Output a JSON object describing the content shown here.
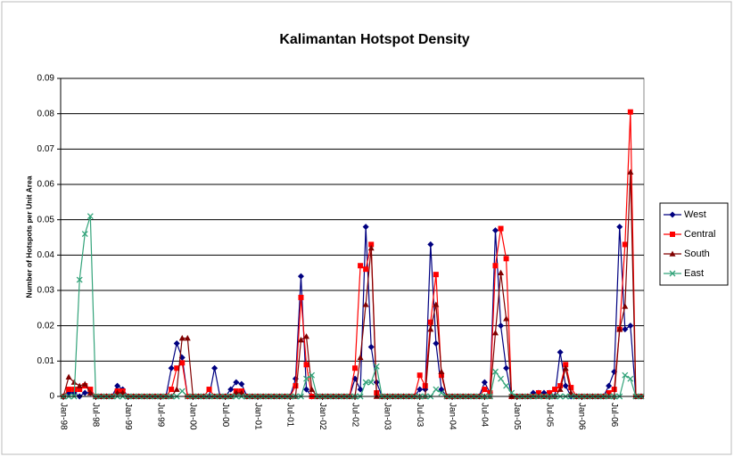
{
  "chart_data": {
    "type": "line",
    "title": "Kalimantan Hotspot Density",
    "y_label": "Number of Hotspots per Unit Area",
    "categories": [
      "Jan-98",
      null,
      null,
      null,
      null,
      null,
      "Jul-98",
      null,
      null,
      null,
      null,
      null,
      "Jan-99",
      null,
      null,
      null,
      null,
      null,
      "Jul-99",
      null,
      null,
      null,
      null,
      null,
      "Jan-00",
      null,
      null,
      null,
      null,
      null,
      "Jul-00",
      null,
      null,
      null,
      null,
      null,
      "Jan-01",
      null,
      null,
      null,
      null,
      null,
      "Jul-01",
      null,
      null,
      null,
      null,
      null,
      "Jan-02",
      null,
      null,
      null,
      null,
      null,
      "Jul-02",
      null,
      null,
      null,
      null,
      null,
      "Jan-03",
      null,
      null,
      null,
      null,
      null,
      "Jul-03",
      null,
      null,
      null,
      null,
      null,
      "Jan-04",
      null,
      null,
      null,
      null,
      null,
      "Jul-04",
      null,
      null,
      null,
      null,
      null,
      "Jan-05",
      null,
      null,
      null,
      null,
      null,
      "Jul-05",
      null,
      null,
      null,
      null,
      null,
      "Jan-06",
      null,
      null,
      null,
      null,
      null,
      "Jul-06",
      null,
      null,
      null,
      null,
      null
    ],
    "series": [
      {
        "name": "West",
        "color": "#000080",
        "marker": "diamond",
        "values": [
          0,
          0.001,
          0.001,
          0,
          0.001,
          0.001,
          0,
          0,
          0,
          0,
          0.003,
          0.002,
          0,
          0,
          0,
          0,
          0,
          0,
          0,
          0,
          0.008,
          0.015,
          0.011,
          0,
          0,
          0,
          0,
          0,
          0.008,
          0,
          0,
          0.002,
          0.004,
          0.0035,
          0,
          0,
          0,
          0,
          0,
          0,
          0,
          0,
          0,
          0.005,
          0.034,
          0.002,
          0,
          0,
          0,
          0,
          0,
          0,
          0,
          0,
          0.005,
          0.002,
          0.048,
          0.014,
          0.004,
          0,
          0,
          0,
          0,
          0,
          0,
          0,
          0.002,
          0.002,
          0.043,
          0.015,
          0.002,
          0,
          0,
          0,
          0,
          0,
          0,
          0,
          0.004,
          0.001,
          0.047,
          0.02,
          0.008,
          0,
          0,
          0,
          0,
          0.001,
          0.001,
          0.001,
          0.001,
          0,
          0.0125,
          0.003,
          0,
          0,
          0,
          0,
          0,
          0,
          0,
          0.003,
          0.007,
          0.048,
          0.019,
          0.02,
          0,
          0
        ]
      },
      {
        "name": "Central",
        "color": "#ff0000",
        "marker": "square",
        "values": [
          0,
          0.002,
          0.002,
          0.002,
          0.003,
          0.002,
          0,
          0,
          0,
          0,
          0.0015,
          0.0015,
          0,
          0,
          0,
          0,
          0,
          0,
          0,
          0,
          0.002,
          0.008,
          0.0095,
          0,
          0,
          0,
          0,
          0.002,
          0,
          0,
          0,
          0,
          0.0015,
          0.0015,
          0,
          0,
          0,
          0,
          0,
          0,
          0,
          0,
          0,
          0.003,
          0.028,
          0.009,
          0,
          0,
          0,
          0,
          0,
          0,
          0,
          0,
          0.008,
          0.037,
          0.036,
          0.043,
          0.001,
          0,
          0,
          0,
          0,
          0,
          0,
          0,
          0.006,
          0.003,
          0.021,
          0.0345,
          0.006,
          0,
          0,
          0,
          0,
          0,
          0,
          0,
          0.002,
          0.001,
          0.037,
          0.0475,
          0.039,
          0,
          0,
          0,
          0,
          0,
          0.001,
          0,
          0.001,
          0.002,
          0.003,
          0.009,
          0.0025,
          0,
          0,
          0,
          0,
          0,
          0,
          0.001,
          0.002,
          0.019,
          0.043,
          0.0805,
          0,
          0
        ]
      },
      {
        "name": "South",
        "color": "#800000",
        "marker": "triangle",
        "values": [
          0,
          0.0055,
          0.004,
          0.003,
          0.0035,
          0.001,
          0,
          0,
          0,
          0,
          0.001,
          0.001,
          0,
          0,
          0,
          0,
          0,
          0,
          0,
          0,
          0,
          0.002,
          0.0165,
          0.0165,
          0,
          0,
          0,
          0,
          0,
          0,
          0,
          0,
          0.001,
          0.001,
          0,
          0,
          0,
          0,
          0,
          0,
          0,
          0,
          0,
          0,
          0.016,
          0.017,
          0.002,
          0,
          0,
          0,
          0,
          0,
          0,
          0,
          0,
          0.011,
          0.026,
          0.042,
          0,
          0,
          0,
          0,
          0,
          0,
          0,
          0,
          0,
          0,
          0.019,
          0.026,
          0.007,
          0,
          0,
          0,
          0,
          0,
          0,
          0,
          0,
          0,
          0.018,
          0.035,
          0.022,
          0,
          0,
          0,
          0,
          0,
          0,
          0,
          0,
          0,
          0.002,
          0.008,
          0.001,
          0,
          0,
          0,
          0,
          0,
          0,
          0,
          0,
          0.019,
          0.0255,
          0.0635,
          0,
          0
        ]
      },
      {
        "name": "East",
        "color": "#33a37a",
        "marker": "x",
        "values": [
          0,
          0,
          0,
          0.033,
          0.046,
          0.051,
          0,
          0,
          0,
          0,
          0,
          0,
          0,
          0,
          0,
          0,
          0,
          0,
          0,
          0,
          0,
          0,
          0.0015,
          0,
          0,
          0,
          0,
          0,
          0,
          0,
          0,
          0,
          0,
          0,
          0,
          0,
          0,
          0,
          0,
          0,
          0,
          0,
          0,
          0,
          0,
          0.005,
          0.006,
          0,
          0,
          0,
          0,
          0,
          0,
          0,
          0,
          0,
          0.004,
          0.004,
          0.0085,
          0,
          0,
          0,
          0,
          0,
          0,
          0,
          0,
          0,
          0,
          0.002,
          0.001,
          0,
          0,
          0,
          0,
          0,
          0,
          0,
          0,
          0,
          0.007,
          0.005,
          0.003,
          0.001,
          0,
          0,
          0,
          0,
          0,
          0,
          0,
          0,
          0,
          0,
          0,
          0,
          0,
          0,
          0,
          0,
          0,
          0,
          0,
          0,
          0.006,
          0.005,
          0,
          0
        ]
      }
    ],
    "ylim": [
      0,
      0.09
    ],
    "yticks": [
      0,
      0.01,
      0.02,
      0.03,
      0.04,
      0.05,
      0.06,
      0.07,
      0.08,
      0.09
    ],
    "grid": true,
    "legend": "right"
  }
}
